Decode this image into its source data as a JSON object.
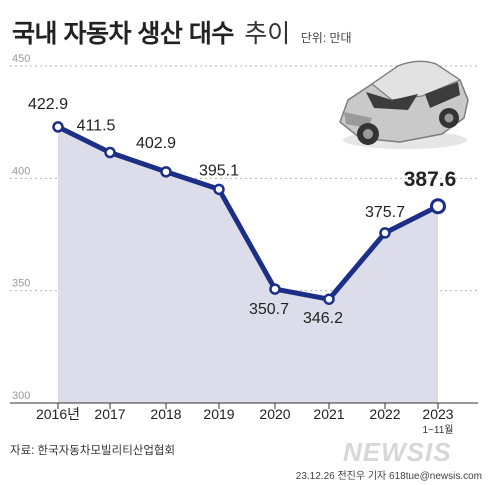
{
  "title": "국내 자동차 생산 대수",
  "title_suffix": "추이",
  "unit": "단위: 만대",
  "source": "자료: 한국자동차모빌리티산업협회",
  "credit": "23.12.26 전진우 기자 618tue@newsis.com",
  "watermark": "NEWSIS",
  "colors": {
    "line": "#1c2f86",
    "area": "#dcdcea",
    "grid": "#b5b5b5"
  },
  "chart_data": {
    "type": "line",
    "categories": [
      "2016년",
      "2017",
      "2018",
      "2019",
      "2020",
      "2021",
      "2022",
      "2023"
    ],
    "category_note": "1~11월",
    "values": [
      422.9,
      411.5,
      402.9,
      395.1,
      350.7,
      346.2,
      375.7,
      387.6
    ],
    "value_labels": [
      "422.9",
      "411.5",
      "402.9",
      "395.1",
      "350.7",
      "346.2",
      "375.7",
      "387.6"
    ],
    "yticks": [
      "450",
      "400",
      "350",
      "300"
    ],
    "ylim": [
      300,
      450
    ],
    "grid": true,
    "highlight_last": true
  }
}
